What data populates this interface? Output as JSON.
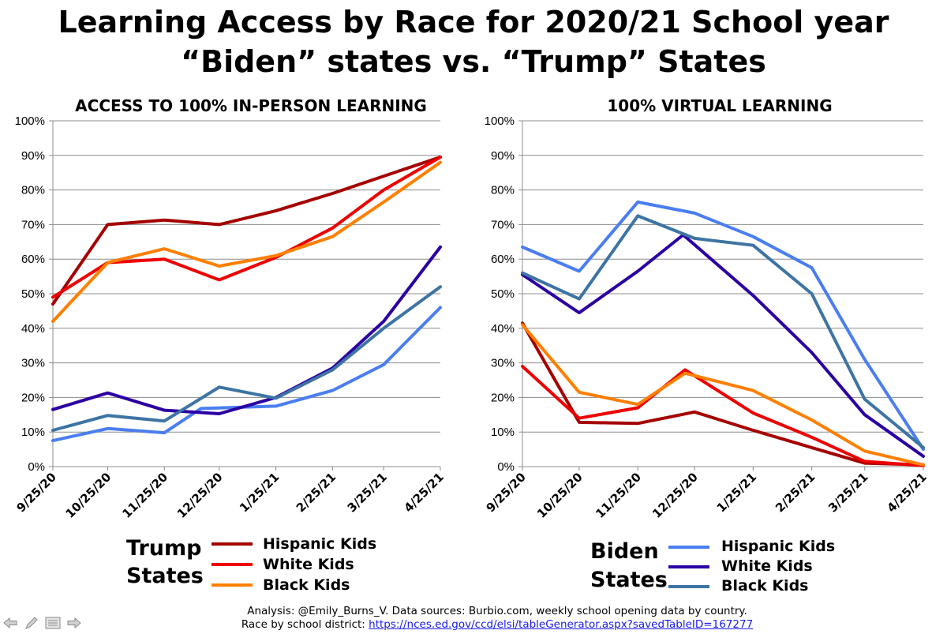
{
  "title_line1": "Learning Access by Race for 2020/21 School year",
  "title_line2": "“Biden” states vs. “Trump” States",
  "chart_data": [
    {
      "type": "line",
      "title": "ACCESS TO 100% IN-PERSON LEARNING",
      "categories": [
        "9/25/20",
        "10/25/20",
        "11/25/20",
        "12/25/20",
        "1/25/21",
        "2/25/21",
        "3/25/21",
        "4/25/21"
      ],
      "x": [
        0,
        30,
        61,
        91,
        122,
        153,
        181,
        212
      ],
      "y_ticks": [
        "0%",
        "10%",
        "20%",
        "30%",
        "40%",
        "50%",
        "60%",
        "70%",
        "80%",
        "90%",
        "100%"
      ],
      "ylim": [
        0,
        100
      ],
      "legend_title": "Trump States",
      "series": [
        {
          "name": "Hispanic Kids",
          "color": "#a50000",
          "points": [
            [
              0,
              47
            ],
            [
              30,
              70
            ],
            [
              61,
              71.3
            ],
            [
              91,
              70
            ],
            [
              122,
              74
            ],
            [
              153,
              79
            ],
            [
              181,
              84
            ],
            [
              212,
              89.5
            ]
          ]
        },
        {
          "name": "White Kids",
          "color": "#ee0000",
          "points": [
            [
              0,
              49
            ],
            [
              30,
              59
            ],
            [
              61,
              60
            ],
            [
              91,
              54
            ],
            [
              122,
              60.5
            ],
            [
              153,
              69
            ],
            [
              181,
              80
            ],
            [
              212,
              89.5
            ]
          ]
        },
        {
          "name": "Black Kids",
          "color": "#ff7f00",
          "points": [
            [
              0,
              42
            ],
            [
              30,
              59
            ],
            [
              61,
              63
            ],
            [
              91,
              58
            ],
            [
              122,
              61
            ],
            [
              153,
              66.5
            ],
            [
              181,
              76.5
            ],
            [
              212,
              88
            ]
          ]
        },
        {
          "name": "Hispanic Kids (Biden)",
          "color": "#4a7ef0",
          "points": [
            [
              0,
              7.5
            ],
            [
              30,
              11
            ],
            [
              61,
              9.8
            ],
            [
              81,
              16.8
            ],
            [
              122,
              17.5
            ],
            [
              153,
              22
            ],
            [
              181,
              29.5
            ],
            [
              212,
              46
            ]
          ]
        },
        {
          "name": "White Kids (Biden)",
          "color": "#2b00a3",
          "points": [
            [
              0,
              16.5
            ],
            [
              30,
              21.3
            ],
            [
              61,
              16.3
            ],
            [
              91,
              15.3
            ],
            [
              122,
              20
            ],
            [
              153,
              28.5
            ],
            [
              181,
              42
            ],
            [
              212,
              63.5
            ]
          ]
        },
        {
          "name": "Black Kids (Biden)",
          "color": "#3d74a3",
          "points": [
            [
              0,
              10.5
            ],
            [
              30,
              14.8
            ],
            [
              61,
              13.2
            ],
            [
              91,
              23
            ],
            [
              122,
              19.8
            ],
            [
              153,
              28
            ],
            [
              181,
              40
            ],
            [
              212,
              52
            ]
          ]
        }
      ]
    },
    {
      "type": "line",
      "title": "100% VIRTUAL LEARNING",
      "categories": [
        "9/25/20",
        "10/25/20",
        "11/25/20",
        "12/25/20",
        "1/25/21",
        "2/25/21",
        "3/25/21",
        "4/25/21"
      ],
      "x": [
        0,
        30,
        61,
        91,
        122,
        153,
        181,
        212
      ],
      "y_ticks": [
        "0%",
        "10%",
        "20%",
        "30%",
        "40%",
        "50%",
        "60%",
        "70%",
        "80%",
        "90%",
        "100%"
      ],
      "ylim": [
        0,
        100
      ],
      "legend_title": "Biden States",
      "series": [
        {
          "name": "Hispanic Kids",
          "color": "#4a7ef0",
          "points": [
            [
              0,
              63.5
            ],
            [
              30,
              56.5
            ],
            [
              61,
              76.5
            ],
            [
              91,
              73.3
            ],
            [
              122,
              66.5
            ],
            [
              153,
              57.5
            ],
            [
              181,
              31
            ],
            [
              212,
              5
            ]
          ]
        },
        {
          "name": "White Kids",
          "color": "#2b00a3",
          "points": [
            [
              0,
              55.5
            ],
            [
              30,
              44.5
            ],
            [
              61,
              56.5
            ],
            [
              85,
              67
            ],
            [
              122,
              49.5
            ],
            [
              153,
              33
            ],
            [
              181,
              15
            ],
            [
              212,
              3
            ]
          ]
        },
        {
          "name": "Black Kids",
          "color": "#3d74a3",
          "points": [
            [
              0,
              56
            ],
            [
              30,
              48.5
            ],
            [
              61,
              72.5
            ],
            [
              91,
              66
            ],
            [
              122,
              64
            ],
            [
              153,
              50
            ],
            [
              181,
              19.5
            ],
            [
              212,
              5.5
            ]
          ]
        },
        {
          "name": "Hispanic Kids (Trump)",
          "color": "#a50000",
          "points": [
            [
              0,
              41.5
            ],
            [
              30,
              12.8
            ],
            [
              61,
              12.5
            ],
            [
              91,
              15.8
            ],
            [
              122,
              10.5
            ],
            [
              153,
              5.5
            ],
            [
              181,
              1
            ],
            [
              212,
              0.5
            ]
          ]
        },
        {
          "name": "White Kids (Trump)",
          "color": "#ee0000",
          "points": [
            [
              0,
              29
            ],
            [
              30,
              14
            ],
            [
              61,
              17
            ],
            [
              86,
              28
            ],
            [
              122,
              15.5
            ],
            [
              153,
              8.5
            ],
            [
              181,
              1.5
            ],
            [
              212,
              0.3
            ]
          ]
        },
        {
          "name": "Black Kids (Trump)",
          "color": "#ff7f00",
          "points": [
            [
              0,
              41
            ],
            [
              30,
              21.5
            ],
            [
              61,
              18
            ],
            [
              86,
              27
            ],
            [
              122,
              22
            ],
            [
              153,
              13.5
            ],
            [
              181,
              4.5
            ],
            [
              212,
              0.5
            ]
          ]
        }
      ]
    }
  ],
  "legend_left": {
    "title_line1": "Trump",
    "title_line2": "States",
    "items": [
      {
        "label": "Hispanic Kids",
        "color": "#a50000"
      },
      {
        "label": "White Kids",
        "color": "#ee0000"
      },
      {
        "label": "Black Kids",
        "color": "#ff7f00"
      }
    ]
  },
  "legend_right": {
    "title_line1": "Biden",
    "title_line2": "States",
    "items": [
      {
        "label": "Hispanic Kids",
        "color": "#4a7ef0"
      },
      {
        "label": "White Kids",
        "color": "#2b00a3"
      },
      {
        "label": "Black Kids",
        "color": "#3d74a3"
      }
    ]
  },
  "footer": {
    "line1": "Analysis: @Emily_Burns_V. Data sources: Burbio.com, weekly school opening data by country.",
    "line2_prefix": "Race by school district: ",
    "link": "https://nces.ed.gov/ccd/elsi/tableGenerator.aspx?savedTableID=167277"
  },
  "toolbar": {
    "icons": [
      "back-arrow-icon",
      "pen-icon",
      "menu-icon",
      "forward-arrow-icon"
    ]
  }
}
